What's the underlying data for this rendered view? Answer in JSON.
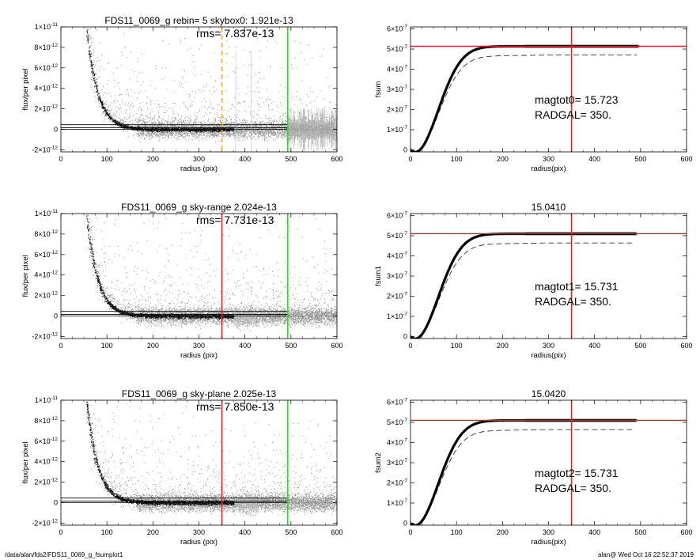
{
  "footer": {
    "path": "/data/alan/fds2/FDS11_0069_g_fsumplot1",
    "stamp": "alan@  Wed Oct 16 22:52:37 2019"
  },
  "chart_data": [
    {
      "id": "flux1",
      "type": "scatter",
      "title": "FDS11_0069_g rebin= 5    skybox0:  1.921e-13",
      "annotation": "rms= 7.837e-13",
      "xlabel": "radius (pix)",
      "ylabel": "flux/per pixel",
      "xlim": [
        0,
        600
      ],
      "ylim": [
        -2.2e-12,
        1e-11
      ],
      "xticks": [
        "0",
        "100",
        "200",
        "300",
        "400",
        "500",
        "600"
      ],
      "yticks": [
        {
          "v": 1e-11,
          "m": "1×10",
          "e": "-11"
        },
        {
          "v": 8e-12,
          "m": "8×10",
          "e": "-12"
        },
        {
          "v": 6e-12,
          "m": "6×10",
          "e": "-12"
        },
        {
          "v": 4e-12,
          "m": "4×10",
          "e": "-12"
        },
        {
          "v": 2e-12,
          "m": "2×10",
          "e": "-12"
        },
        {
          "v": 0,
          "m": "0",
          "e": ""
        },
        {
          "v": -2e-12,
          "m": "-2×10",
          "e": "-12"
        }
      ],
      "profile_model": {
        "a": 1e-10,
        "scale": 24
      },
      "band_start": 55,
      "scatter_extent": 600,
      "sky_lines": [
        1.5e-13,
        4.5e-13
      ],
      "vlines": [
        {
          "x": 350,
          "color": "#f5a623",
          "dashed": true
        },
        {
          "x": 493,
          "color": "#22dd22",
          "dashed": false
        }
      ],
      "gray_lines": [
        380,
        413
      ],
      "noise_from": 493,
      "bump": null
    },
    {
      "id": "fsum",
      "type": "line",
      "title": "",
      "xlabel": "radius(pix)",
      "ylabel": "fsum",
      "xlim": [
        0,
        600
      ],
      "ylim": [
        -1e-08,
        6.1e-07
      ],
      "xticks": [
        "0",
        "100",
        "200",
        "300",
        "400",
        "500",
        "600"
      ],
      "yticks": [
        {
          "v": 6e-07,
          "m": "6×10",
          "e": "-7"
        },
        {
          "v": 5e-07,
          "m": "5×10",
          "e": "-7"
        },
        {
          "v": 4e-07,
          "m": "4×10",
          "e": "-7"
        },
        {
          "v": 3e-07,
          "m": "3×10",
          "e": "-7"
        },
        {
          "v": 2e-07,
          "m": "2×10",
          "e": "-7"
        },
        {
          "v": 1e-07,
          "m": "1×10",
          "e": "-7"
        },
        {
          "v": 0,
          "m": "0",
          "e": ""
        }
      ],
      "curve_model": {
        "total": 5.14e-07,
        "scale": 60,
        "dashed_ratio": 0.915,
        "xmax": 495
      },
      "hline": 5.14e-07,
      "vline": 350,
      "labels": [
        {
          "text": "magtot0=  15.723",
          "x": 270,
          "y": 2.3e-07
        },
        {
          "text": "RADGAL=    350.",
          "x": 270,
          "y": 1.55e-07
        }
      ]
    },
    {
      "id": "flux2",
      "type": "scatter",
      "title": "FDS11_0069_g sky-range  2.024e-13",
      "annotation": "rms= 7.731e-13",
      "xlabel": "radius (pix)",
      "ylabel": "flux/per pixel",
      "xlim": [
        0,
        600
      ],
      "ylim": [
        -2.2e-12,
        1e-11
      ],
      "xticks": [
        "0",
        "100",
        "200",
        "300",
        "400",
        "500",
        "600"
      ],
      "yticks": [
        {
          "v": 1e-11,
          "m": "1×10",
          "e": "-11"
        },
        {
          "v": 8e-12,
          "m": "8×10",
          "e": "-12"
        },
        {
          "v": 6e-12,
          "m": "6×10",
          "e": "-12"
        },
        {
          "v": 4e-12,
          "m": "4×10",
          "e": "-12"
        },
        {
          "v": 2e-12,
          "m": "2×10",
          "e": "-12"
        },
        {
          "v": 0,
          "m": "0",
          "e": ""
        },
        {
          "v": -2e-12,
          "m": "-2×10",
          "e": "-12"
        }
      ],
      "profile_model": {
        "a": 1e-10,
        "scale": 24
      },
      "band_start": 55,
      "scatter_extent": 600,
      "sky_lines": [
        1.5e-13,
        4.5e-13
      ],
      "vlines": [
        {
          "x": 350,
          "color": "#dd2222",
          "dashed": false
        },
        {
          "x": 493,
          "color": "#22dd22",
          "dashed": false
        }
      ],
      "gray_lines": [],
      "noise_from": null,
      "bump": [
        380,
        425
      ]
    },
    {
      "id": "fsum1",
      "type": "line",
      "title": "15.0410",
      "xlabel": "radius(pix)",
      "ylabel": "fsum1",
      "xlim": [
        0,
        600
      ],
      "ylim": [
        -1e-08,
        6.1e-07
      ],
      "xticks": [
        "0",
        "100",
        "200",
        "300",
        "400",
        "500",
        "600"
      ],
      "yticks": [
        {
          "v": 6e-07,
          "m": "6×10",
          "e": "-7"
        },
        {
          "v": 5e-07,
          "m": "5×10",
          "e": "-7"
        },
        {
          "v": 4e-07,
          "m": "4×10",
          "e": "-7"
        },
        {
          "v": 3e-07,
          "m": "3×10",
          "e": "-7"
        },
        {
          "v": 2e-07,
          "m": "2×10",
          "e": "-7"
        },
        {
          "v": 1e-07,
          "m": "1×10",
          "e": "-7"
        },
        {
          "v": 0,
          "m": "0",
          "e": ""
        }
      ],
      "curve_model": {
        "total": 5.1e-07,
        "scale": 60,
        "dashed_ratio": 0.91,
        "xmax": 490
      },
      "hline": 5.1e-07,
      "vline": 350,
      "labels": [
        {
          "text": "magtot1=  15.731",
          "x": 270,
          "y": 2.3e-07
        },
        {
          "text": "RADGAL=    350.",
          "x": 270,
          "y": 1.55e-07
        }
      ]
    },
    {
      "id": "flux3",
      "type": "scatter",
      "title": "FDS11_0069_g sky-plane  2.025e-13",
      "annotation": "rms= 7.850e-13",
      "xlabel": "radius (pix)",
      "ylabel": "flux/per pixel",
      "xlim": [
        0,
        600
      ],
      "ylim": [
        -2.2e-12,
        1e-11
      ],
      "xticks": [
        "0",
        "100",
        "200",
        "300",
        "400",
        "500",
        "600"
      ],
      "yticks": [
        {
          "v": 1e-11,
          "m": "1×10",
          "e": "-11"
        },
        {
          "v": 8e-12,
          "m": "8×10",
          "e": "-12"
        },
        {
          "v": 6e-12,
          "m": "6×10",
          "e": "-12"
        },
        {
          "v": 4e-12,
          "m": "4×10",
          "e": "-12"
        },
        {
          "v": 2e-12,
          "m": "2×10",
          "e": "-12"
        },
        {
          "v": 0,
          "m": "0",
          "e": ""
        },
        {
          "v": -2e-12,
          "m": "-2×10",
          "e": "-12"
        }
      ],
      "profile_model": {
        "a": 1e-10,
        "scale": 24
      },
      "band_start": 55,
      "scatter_extent": 600,
      "sky_lines": [
        1.5e-13,
        4.5e-13
      ],
      "vlines": [
        {
          "x": 350,
          "color": "#dd2222",
          "dashed": false
        },
        {
          "x": 493,
          "color": "#22dd22",
          "dashed": false
        }
      ],
      "gray_lines": [],
      "noise_from": null,
      "bump": [
        380,
        425
      ]
    },
    {
      "id": "fsum2",
      "type": "line",
      "title": "15.0420",
      "xlabel": "radius(pix)",
      "ylabel": "fsum2",
      "xlim": [
        0,
        600
      ],
      "ylim": [
        -1e-08,
        6.1e-07
      ],
      "xticks": [
        "0",
        "100",
        "200",
        "300",
        "400",
        "500",
        "600"
      ],
      "yticks": [
        {
          "v": 6e-07,
          "m": "6×10",
          "e": "-7"
        },
        {
          "v": 5e-07,
          "m": "5×10",
          "e": "-7"
        },
        {
          "v": 4e-07,
          "m": "4×10",
          "e": "-7"
        },
        {
          "v": 3e-07,
          "m": "3×10",
          "e": "-7"
        },
        {
          "v": 2e-07,
          "m": "2×10",
          "e": "-7"
        },
        {
          "v": 1e-07,
          "m": "1×10",
          "e": "-7"
        },
        {
          "v": 0,
          "m": "0",
          "e": ""
        }
      ],
      "curve_model": {
        "total": 5.1e-07,
        "scale": 60,
        "dashed_ratio": 0.91,
        "xmax": 490
      },
      "hline": 5.1e-07,
      "vline": 350,
      "labels": [
        {
          "text": "magtot2=  15.731",
          "x": 270,
          "y": 2.3e-07
        },
        {
          "text": "RADGAL=    350.",
          "x": 270,
          "y": 1.55e-07
        }
      ]
    }
  ]
}
